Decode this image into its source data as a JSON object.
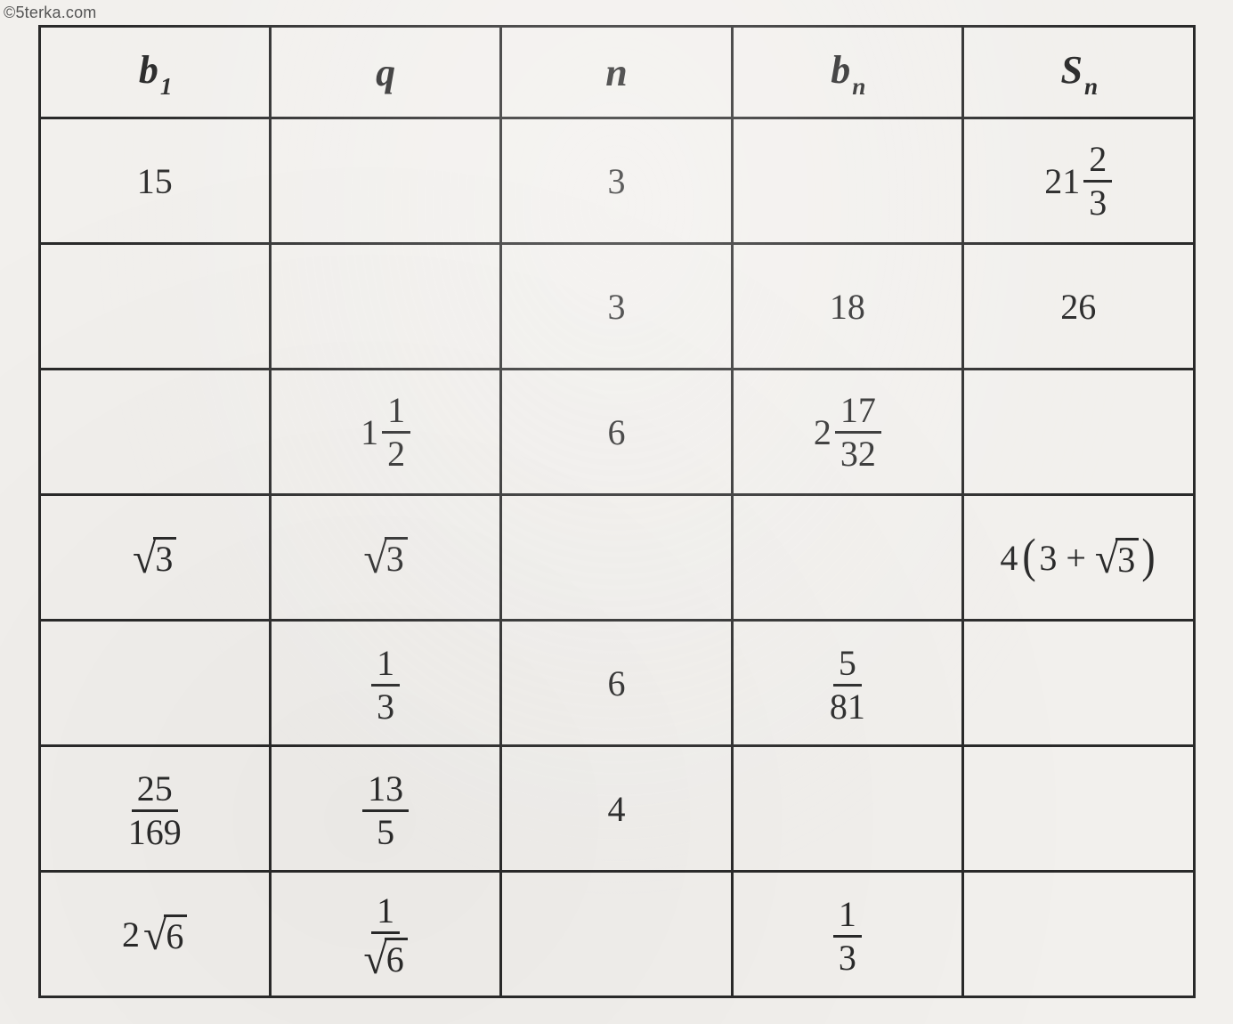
{
  "watermark": "©5terka.com",
  "table": {
    "columns": [
      {
        "var": "b",
        "sub": "1"
      },
      {
        "var": "q",
        "sub": ""
      },
      {
        "var": "n",
        "sub": ""
      },
      {
        "var": "b",
        "sub": "n"
      },
      {
        "var": "S",
        "sub": "n"
      }
    ],
    "column_widths": [
      "20%",
      "20%",
      "20%",
      "20%",
      "20%"
    ],
    "border_color": "#2a2a2a",
    "background_color": "#f2f0ed",
    "font_family": "Georgia, Times New Roman, serif",
    "header_fontsize_pt": 32,
    "cell_fontsize_pt": 30,
    "rows": [
      {
        "b1": {
          "type": "int",
          "value": "15"
        },
        "q": {
          "type": "empty"
        },
        "n": {
          "type": "int",
          "value": "3"
        },
        "bn": {
          "type": "empty"
        },
        "Sn": {
          "type": "mixed",
          "whole": "21",
          "num": "2",
          "den": "3"
        }
      },
      {
        "b1": {
          "type": "empty"
        },
        "q": {
          "type": "empty"
        },
        "n": {
          "type": "int",
          "value": "3"
        },
        "bn": {
          "type": "int",
          "value": "18"
        },
        "Sn": {
          "type": "int",
          "value": "26"
        }
      },
      {
        "b1": {
          "type": "empty"
        },
        "q": {
          "type": "mixed",
          "whole": "1",
          "num": "1",
          "den": "2"
        },
        "n": {
          "type": "int",
          "value": "6"
        },
        "bn": {
          "type": "mixed",
          "whole": "2",
          "num": "17",
          "den": "32"
        },
        "Sn": {
          "type": "empty"
        }
      },
      {
        "b1": {
          "type": "sqrt",
          "radicand": "3"
        },
        "q": {
          "type": "sqrt",
          "radicand": "3"
        },
        "n": {
          "type": "empty"
        },
        "bn": {
          "type": "empty"
        },
        "Sn": {
          "type": "expr_4_3_plus_sqrt3",
          "coeff": "4",
          "inside_a": "3",
          "inside_sqrt": "3"
        }
      },
      {
        "b1": {
          "type": "empty"
        },
        "q": {
          "type": "frac",
          "num": "1",
          "den": "3"
        },
        "n": {
          "type": "int",
          "value": "6"
        },
        "bn": {
          "type": "frac",
          "num": "5",
          "den": "81"
        },
        "Sn": {
          "type": "empty"
        }
      },
      {
        "b1": {
          "type": "frac",
          "num": "25",
          "den": "169"
        },
        "q": {
          "type": "frac",
          "num": "13",
          "den": "5"
        },
        "n": {
          "type": "int",
          "value": "4"
        },
        "bn": {
          "type": "empty"
        },
        "Sn": {
          "type": "empty"
        }
      },
      {
        "b1": {
          "type": "coeff_sqrt",
          "coeff": "2",
          "radicand": "6"
        },
        "q": {
          "type": "frac_sqrt_den",
          "num": "1",
          "den_radicand": "6"
        },
        "n": {
          "type": "empty"
        },
        "bn": {
          "type": "frac",
          "num": "1",
          "den": "3"
        },
        "Sn": {
          "type": "empty"
        }
      }
    ]
  }
}
